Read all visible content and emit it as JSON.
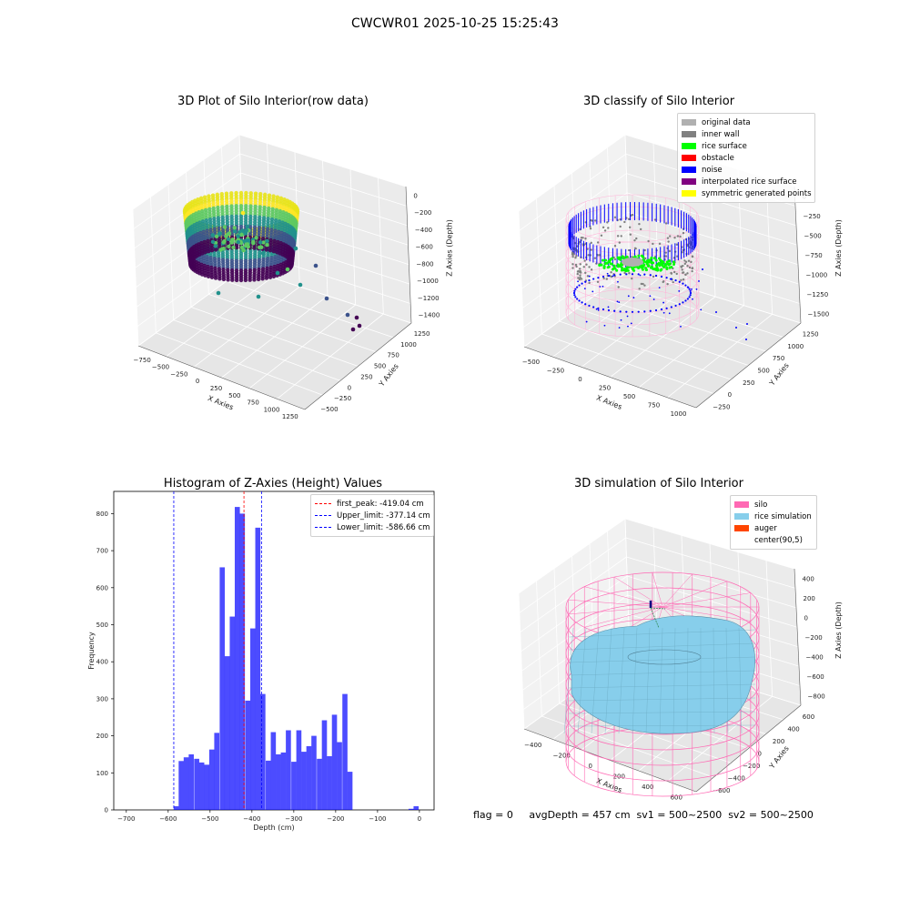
{
  "figure": {
    "suptitle": "CWCWR01 2025-10-25 15:25:43",
    "status_line": "flag = 0     avgDepth = 457 cm  sv1 = 500~2500  sv2 = 500~2500"
  },
  "panels": {
    "raw": {
      "title": "3D Plot of Silo Interior(row data)",
      "xlabel": "X Axies",
      "ylabel": "Y Axies",
      "zlabel": "Z Axies (Depth)",
      "x_ticks": [
        "−750",
        "−500",
        "−250",
        "0",
        "250",
        "500",
        "750",
        "1000",
        "1250"
      ],
      "y_ticks": [
        "−500",
        "−250",
        "0",
        "250",
        "500",
        "750",
        "1000",
        "1250"
      ],
      "z_ticks": [
        "0",
        "−200",
        "−400",
        "−600",
        "−800",
        "−1000",
        "−1200",
        "−1400"
      ],
      "colormap": [
        "#440154",
        "#3b528b",
        "#21918c",
        "#5ec962",
        "#fde725"
      ]
    },
    "classify": {
      "title": "3D classify of Silo Interior",
      "xlabel": "X Axies",
      "ylabel": "Y Axies",
      "zlabel": "Z Axies (Depth)",
      "x_ticks": [
        "−500",
        "−250",
        "0",
        "250",
        "500",
        "750",
        "1000"
      ],
      "y_ticks": [
        "−250",
        "0",
        "250",
        "500",
        "750",
        "1000",
        "1250"
      ],
      "z_ticks": [
        "0",
        "−250",
        "−500",
        "−750",
        "−1000",
        "−1250",
        "−1500"
      ],
      "legend": [
        {
          "label": "original data",
          "color": "#b0b0b0"
        },
        {
          "label": "inner wall",
          "color": "#808080"
        },
        {
          "label": "rice surface",
          "color": "#00ff00"
        },
        {
          "label": "obstacle",
          "color": "#ff0000"
        },
        {
          "label": "noise",
          "color": "#0000ff"
        },
        {
          "label": "interpolated rice surface",
          "color": "#800080"
        },
        {
          "label": "symmetric generated points",
          "color": "#ffff00"
        }
      ]
    },
    "simulation": {
      "title": "3D simulation of Silo Interior",
      "xlabel": "X Axies",
      "ylabel": "Y Axies",
      "zlabel": "Z Axies (Depth)",
      "x_ticks": [
        "−400",
        "−200",
        "0",
        "200",
        "400",
        "600"
      ],
      "y_ticks": [
        "−600",
        "−400",
        "−200",
        "0",
        "200",
        "400",
        "600"
      ],
      "z_ticks": [
        "400",
        "200",
        "0",
        "−200",
        "−400",
        "−600",
        "−800"
      ],
      "legend": [
        {
          "label": "silo",
          "color": "#ff69b4"
        },
        {
          "label": "rice simulation",
          "color": "#87ceeb"
        },
        {
          "label": "auger",
          "color": "#ff4500"
        },
        {
          "label": "center(90,5)",
          "color": "#ffffff"
        }
      ]
    }
  },
  "chart_data": [
    {
      "type": "bar",
      "title": "Histogram of Z-Axies (Height) Values",
      "xlabel": "Depth (cm)",
      "ylabel": "Frequency",
      "xlim": [
        -730,
        35
      ],
      "ylim": [
        0,
        860
      ],
      "x_ticks": [
        -700,
        -600,
        -500,
        -400,
        -300,
        -200,
        -100,
        0
      ],
      "y_ticks": [
        0,
        100,
        200,
        300,
        400,
        500,
        600,
        700,
        800
      ],
      "bin_width": 12.2,
      "bins": [
        {
          "x": -587,
          "v": 10
        },
        {
          "x": -575,
          "v": 132
        },
        {
          "x": -563,
          "v": 142
        },
        {
          "x": -551,
          "v": 150
        },
        {
          "x": -538,
          "v": 138
        },
        {
          "x": -526,
          "v": 128
        },
        {
          "x": -514,
          "v": 122
        },
        {
          "x": -502,
          "v": 163
        },
        {
          "x": -490,
          "v": 208
        },
        {
          "x": -477,
          "v": 655
        },
        {
          "x": -465,
          "v": 415
        },
        {
          "x": -453,
          "v": 522
        },
        {
          "x": -441,
          "v": 818
        },
        {
          "x": -429,
          "v": 800
        },
        {
          "x": -416,
          "v": 295
        },
        {
          "x": -404,
          "v": 490
        },
        {
          "x": -392,
          "v": 762
        },
        {
          "x": -380,
          "v": 313
        },
        {
          "x": -367,
          "v": 133
        },
        {
          "x": -355,
          "v": 210
        },
        {
          "x": -343,
          "v": 150
        },
        {
          "x": -331,
          "v": 155
        },
        {
          "x": -319,
          "v": 215
        },
        {
          "x": -306,
          "v": 130
        },
        {
          "x": -294,
          "v": 215
        },
        {
          "x": -282,
          "v": 157
        },
        {
          "x": -270,
          "v": 172
        },
        {
          "x": -258,
          "v": 200
        },
        {
          "x": -245,
          "v": 138
        },
        {
          "x": -233,
          "v": 242
        },
        {
          "x": -221,
          "v": 145
        },
        {
          "x": -209,
          "v": 257
        },
        {
          "x": -197,
          "v": 183
        },
        {
          "x": -184,
          "v": 313
        },
        {
          "x": -172,
          "v": 103
        },
        {
          "x": -26,
          "v": 3
        },
        {
          "x": -14,
          "v": 10
        }
      ],
      "bar_color": "#0000ff",
      "vlines": [
        {
          "label": "first_peak: -419.04 cm",
          "x": -419.04,
          "color": "#ff0000"
        },
        {
          "label": "Upper_limit: -377.14 cm",
          "x": -377.14,
          "color": "#0000ff"
        },
        {
          "label": "Lower_limit: -586.66 cm",
          "x": -586.66,
          "color": "#0000ff"
        }
      ],
      "legend_position": "top-right"
    }
  ]
}
